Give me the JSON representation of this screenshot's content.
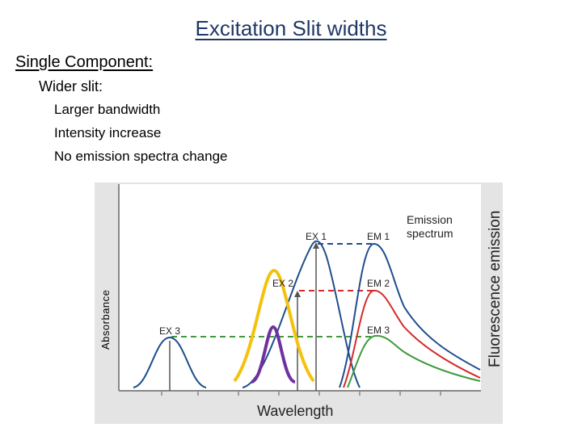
{
  "slide": {
    "title": "Excitation Slit widths",
    "subheading": "Single Component:",
    "wider_slit": "Wider slit:",
    "points": [
      "Larger bandwidth",
      "Intensity increase",
      "No emission spectra change"
    ]
  },
  "figure": {
    "y_axis_label": "Absorbance",
    "x_axis_label": "Wavelength",
    "right_axis_label": "Fluorescence emission",
    "emission_label_line1": "Emission",
    "emission_label_line2": "spectrum",
    "labels": {
      "ex1": "EX 1",
      "ex2": "EX 2",
      "ex3": "EX 3",
      "em1": "EM 1",
      "em2": "EM 2",
      "em3": "EM 3"
    },
    "colors": {
      "blue": "#1f4e8c",
      "red": "#d62a2a",
      "green": "#3e9a3a",
      "yellow": "#f4c20d",
      "purple": "#7030a0"
    }
  }
}
